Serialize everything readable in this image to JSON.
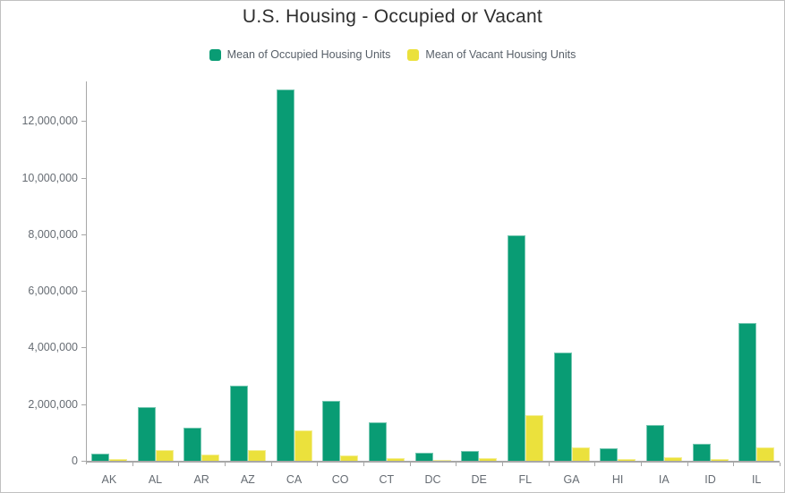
{
  "title": "U.S. Housing - Occupied or Vacant",
  "chart_data": {
    "type": "bar",
    "title": "U.S. Housing - Occupied or Vacant",
    "categories": [
      "AK",
      "AL",
      "AR",
      "AZ",
      "CA",
      "CO",
      "CT",
      "DC",
      "DE",
      "FL",
      "GA",
      "HI",
      "IA",
      "ID",
      "IL"
    ],
    "series": [
      {
        "name": "Mean of Occupied Housing Units",
        "color": "#099C74",
        "values": [
          240000,
          1890000,
          1170000,
          2650000,
          13100000,
          2110000,
          1370000,
          290000,
          360000,
          7950000,
          3830000,
          440000,
          1250000,
          610000,
          4870000
        ]
      },
      {
        "name": "Mean of Vacant Housing Units",
        "color": "#EBE13C",
        "values": [
          70000,
          380000,
          215000,
          390000,
          1080000,
          200000,
          110000,
          40000,
          95000,
          1610000,
          470000,
          60000,
          130000,
          70000,
          470000
        ]
      }
    ],
    "xlabel": "",
    "ylabel": "",
    "ylim": [
      0,
      13400000
    ],
    "yticks": [
      0,
      2000000,
      4000000,
      6000000,
      8000000,
      10000000,
      12000000
    ],
    "ytick_labels": [
      "0",
      "2,000,000",
      "4,000,000",
      "6,000,000",
      "8,000,000",
      "10,000,000",
      "12,000,000"
    ],
    "grid": false,
    "legend_position": "top",
    "bar_orientation": "vertical"
  },
  "colors": {
    "occupied": "#099C74",
    "vacant": "#EBE13C",
    "axis": "#a7a7a7",
    "tick_text": "#666c73",
    "title_text": "#2e2e2e",
    "legend_text": "#575f68",
    "page_border": "#c0c0c0"
  }
}
